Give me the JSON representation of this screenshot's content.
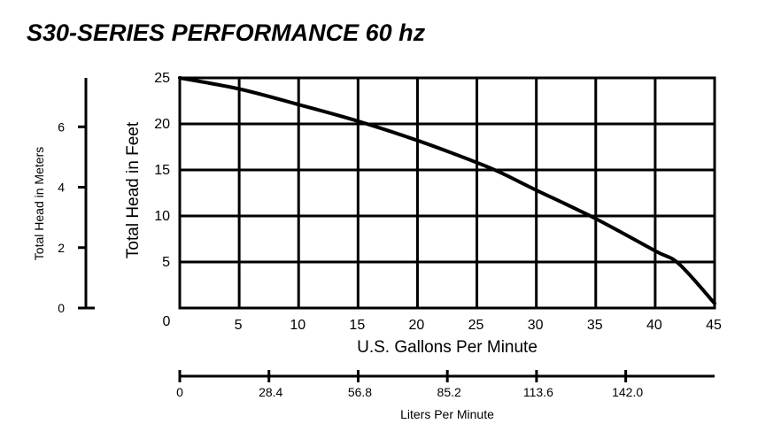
{
  "chart_data": {
    "type": "line",
    "title": "S30-SERIES PERFORMANCE 60 hz",
    "xlabel": "U.S. Gallons Per Minute",
    "ylabel": "Total Head in Feet",
    "xlim": [
      0,
      45
    ],
    "ylim": [
      0,
      25
    ],
    "grid": true,
    "x_ticks": [
      {
        "value": 0,
        "label": "0"
      },
      {
        "value": 5,
        "label": "5"
      },
      {
        "value": 10,
        "label": "10"
      },
      {
        "value": 15,
        "label": "15"
      },
      {
        "value": 20,
        "label": "20"
      },
      {
        "value": 25,
        "label": "25"
      },
      {
        "value": 30,
        "label": "30"
      },
      {
        "value": 35,
        "label": "35"
      },
      {
        "value": 40,
        "label": "40"
      },
      {
        "value": 45,
        "label": "45"
      }
    ],
    "y_ticks": [
      {
        "value": 5,
        "label": "5"
      },
      {
        "value": 10,
        "label": "10"
      },
      {
        "value": 15,
        "label": "15"
      },
      {
        "value": 20,
        "label": "20"
      },
      {
        "value": 25,
        "label": "25"
      }
    ],
    "series": [
      {
        "x": [
          0,
          5,
          10,
          15,
          20,
          25,
          27,
          30,
          35,
          40,
          42,
          45
        ],
        "y": [
          25,
          23.8,
          22.1,
          20.3,
          18.2,
          15.8,
          14.7,
          12.8,
          9.7,
          6.2,
          4.8,
          0.5
        ]
      }
    ],
    "secondary_y": {
      "label": "Total Head in Meters",
      "ylim": [
        0,
        7.62
      ],
      "ticks": [
        {
          "value": 0,
          "label": "0"
        },
        {
          "value": 2,
          "label": "2"
        },
        {
          "value": 4,
          "label": "4"
        },
        {
          "value": 6,
          "label": "6"
        }
      ]
    },
    "secondary_x": {
      "label": "Liters Per Minute",
      "xlim": [
        0,
        170.3
      ],
      "ticks": [
        {
          "value": 0,
          "label": "0"
        },
        {
          "value": 28.4,
          "label": "28.4"
        },
        {
          "value": 56.8,
          "label": "56.8"
        },
        {
          "value": 85.2,
          "label": "85.2"
        },
        {
          "value": 113.6,
          "label": "113.6"
        },
        {
          "value": 142.0,
          "label": "142.0"
        }
      ]
    }
  }
}
